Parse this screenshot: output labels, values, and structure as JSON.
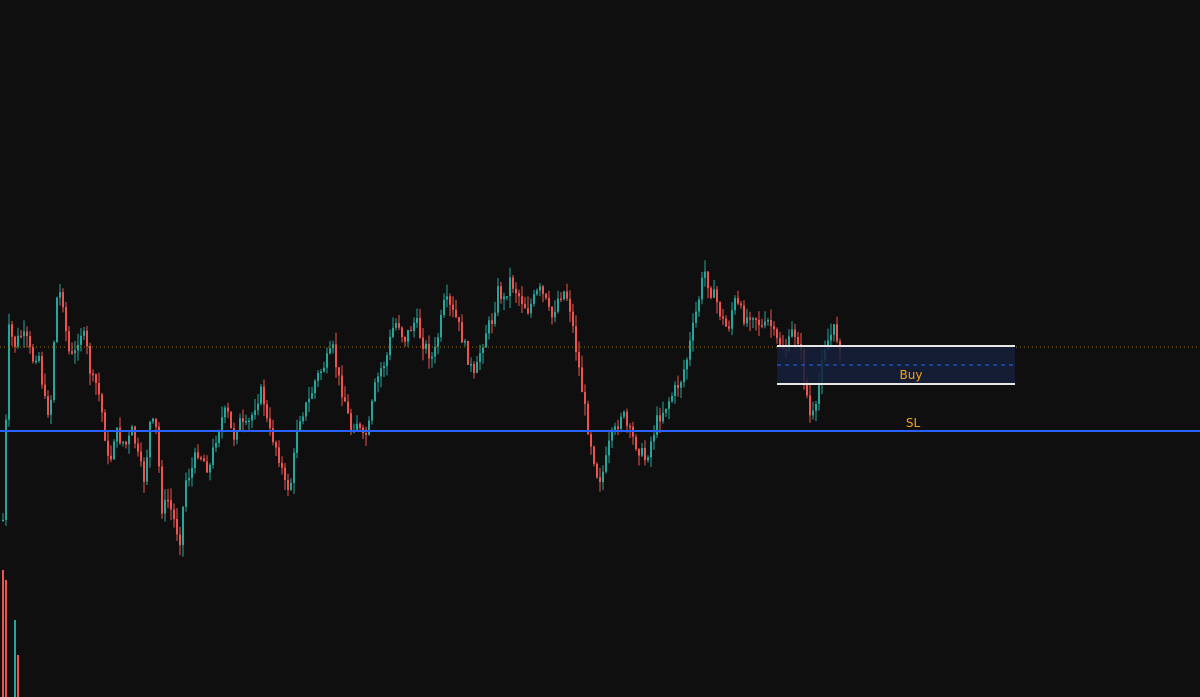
{
  "colors": {
    "background": "#0f0f0f",
    "up_candle": "#26a69a",
    "down_candle": "#ef5350",
    "sl_line": "#2962ff",
    "zone_fill": "#15203a",
    "zone_border": "#e6e6e6",
    "zone_mid": "#2962ff",
    "label_text": "#f7a21b",
    "price_line": "#b8860b"
  },
  "zone": {
    "label": "Buy"
  },
  "stop_loss": {
    "label": "SL"
  },
  "chart_data": {
    "type": "candlestick",
    "title": "",
    "xlabel": "",
    "ylabel": "",
    "grid": false,
    "legend": "none",
    "ylim": [
      0,
      697
    ],
    "close_path": [
      520,
      330,
      345,
      335,
      340,
      360,
      350,
      400,
      415,
      300,
      290,
      350,
      360,
      330,
      340,
      380,
      385,
      420,
      470,
      430,
      440,
      445,
      430,
      460,
      480,
      420,
      430,
      510,
      500,
      520,
      540,
      480,
      470,
      450,
      460,
      470,
      440,
      420,
      410,
      440,
      420,
      430,
      420,
      400,
      390,
      430,
      440,
      460,
      490,
      480,
      420,
      410,
      400,
      380,
      370,
      360,
      350,
      380,
      400,
      430,
      420,
      440,
      430,
      390,
      370,
      360,
      330,
      320,
      340,
      330,
      320,
      340,
      350,
      360,
      330,
      300,
      310,
      320,
      340,
      360,
      380,
      350,
      330,
      320,
      290,
      300,
      280,
      290,
      300,
      310,
      300,
      290,
      300,
      320,
      300,
      290,
      300,
      340,
      380,
      420,
      450,
      480,
      470,
      440,
      430,
      410,
      430,
      440,
      450,
      460,
      440,
      420,
      410,
      400,
      390,
      380,
      360,
      330,
      300,
      270,
      290,
      300,
      320,
      330,
      300,
      310,
      320,
      310,
      320,
      330,
      320,
      340,
      345,
      350,
      330,
      340,
      380,
      420,
      410,
      350,
      340,
      330,
      345
    ],
    "levels": {
      "zone_top": 346,
      "zone_mid": 365,
      "zone_bottom": 384,
      "stop_loss": 431,
      "dotted_price": 347
    }
  }
}
